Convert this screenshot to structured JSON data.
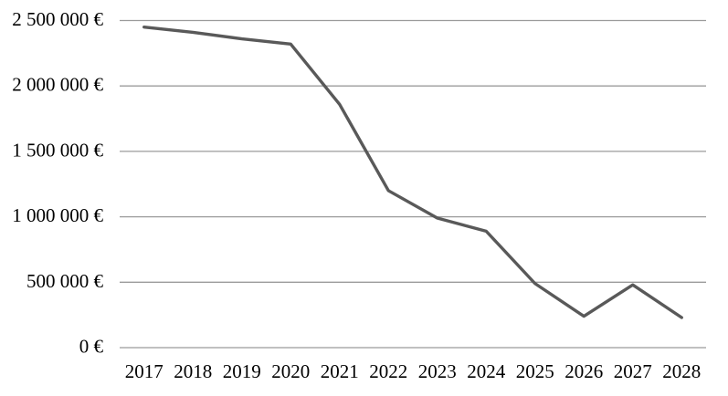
{
  "chart_data": {
    "type": "line",
    "title": "",
    "xlabel": "",
    "ylabel": "",
    "categories": [
      "2017",
      "2018",
      "2019",
      "2020",
      "2021",
      "2022",
      "2023",
      "2024",
      "2025",
      "2026",
      "2027",
      "2028"
    ],
    "values": [
      2450000,
      2410000,
      2360000,
      2320000,
      1860000,
      1200000,
      990000,
      890000,
      490000,
      240000,
      480000,
      230000
    ],
    "ylim": [
      0,
      2500000
    ],
    "ytick_step": 500000,
    "ytick_labels": [
      "0 €",
      "500 000 €",
      "1 000 000 €",
      "1 500 000 €",
      "2 000 000 €",
      "2 500 000 €"
    ],
    "grid": true,
    "legend_position": "none",
    "line_color": "#595959",
    "gridline_color": "#9b9b9b",
    "text_color": "#000000",
    "background_color": "#ffffff"
  }
}
